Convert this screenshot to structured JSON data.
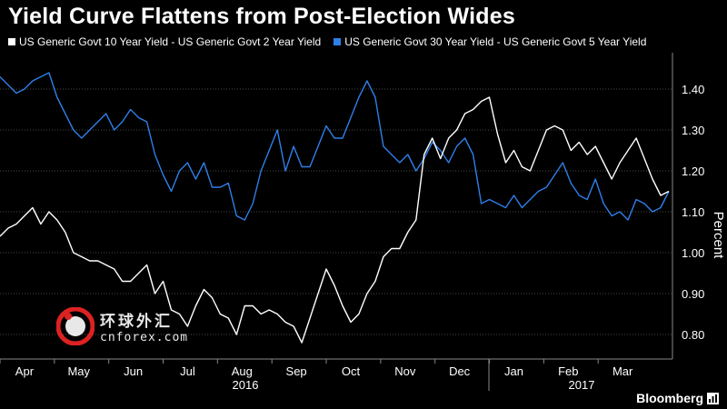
{
  "title": "Yield Curve Flattens from Post-Election Wides",
  "colors": {
    "background": "#000000",
    "series_a": "#ffffff",
    "series_b": "#2f7fe8",
    "grid": "#4a4a4a",
    "text": "#ffffff"
  },
  "watermark": {
    "cn": "环球外汇",
    "en": "cnforex.com",
    "icon": "cnforex-logo"
  },
  "brand": {
    "name": "Bloomberg",
    "icon": "bloomberg-chart-icon"
  },
  "chart_data": {
    "type": "line",
    "title": "Yield Curve Flattens from Post-Election Wides",
    "ylabel": "Percent",
    "xlabel": "",
    "ylim": [
      0.74,
      1.48
    ],
    "yticks": [
      "0.80",
      "0.90",
      "1.00",
      "1.10",
      "1.20",
      "1.30",
      "1.40"
    ],
    "xticks": [
      "Apr",
      "May",
      "Jun",
      "Jul",
      "Aug",
      "Sep",
      "Oct",
      "Nov",
      "Dec",
      "Jan",
      "Feb",
      "Mar"
    ],
    "year_labels": [
      "2016",
      "2017"
    ],
    "grid": true,
    "legend_position": "top",
    "x_index_range": [
      0,
      82
    ],
    "series": [
      {
        "name": "US Generic Govt 10 Year Yield - US Generic Govt 2 Year Yield",
        "color": "#ffffff",
        "values": [
          1.04,
          1.06,
          1.07,
          1.09,
          1.11,
          1.07,
          1.1,
          1.08,
          1.05,
          1.0,
          0.99,
          0.98,
          0.98,
          0.97,
          0.96,
          0.93,
          0.93,
          0.95,
          0.97,
          0.9,
          0.93,
          0.86,
          0.85,
          0.82,
          0.87,
          0.91,
          0.89,
          0.85,
          0.84,
          0.8,
          0.87,
          0.87,
          0.85,
          0.86,
          0.85,
          0.83,
          0.82,
          0.78,
          0.84,
          0.9,
          0.96,
          0.92,
          0.87,
          0.83,
          0.85,
          0.9,
          0.93,
          0.99,
          1.01,
          1.01,
          1.05,
          1.08,
          1.24,
          1.28,
          1.23,
          1.28,
          1.3,
          1.34,
          1.35,
          1.37,
          1.38,
          1.29,
          1.22,
          1.25,
          1.21,
          1.2,
          1.25,
          1.3,
          1.31,
          1.3,
          1.25,
          1.27,
          1.24,
          1.26,
          1.22,
          1.18,
          1.22,
          1.25,
          1.28,
          1.23,
          1.18,
          1.14,
          1.15
        ]
      },
      {
        "name": "US Generic Govt 30 Year Yield - US Generic Govt 5 Year Yield",
        "color": "#2f7fe8",
        "values": [
          1.43,
          1.41,
          1.39,
          1.4,
          1.42,
          1.43,
          1.44,
          1.38,
          1.34,
          1.3,
          1.28,
          1.3,
          1.32,
          1.34,
          1.3,
          1.32,
          1.35,
          1.33,
          1.32,
          1.24,
          1.19,
          1.15,
          1.2,
          1.22,
          1.18,
          1.22,
          1.16,
          1.16,
          1.17,
          1.09,
          1.08,
          1.12,
          1.2,
          1.25,
          1.3,
          1.2,
          1.26,
          1.21,
          1.21,
          1.26,
          1.31,
          1.28,
          1.28,
          1.33,
          1.38,
          1.42,
          1.38,
          1.26,
          1.24,
          1.22,
          1.24,
          1.2,
          1.23,
          1.27,
          1.25,
          1.22,
          1.26,
          1.28,
          1.24,
          1.12,
          1.13,
          1.12,
          1.11,
          1.14,
          1.11,
          1.13,
          1.15,
          1.16,
          1.19,
          1.22,
          1.17,
          1.14,
          1.13,
          1.18,
          1.12,
          1.09,
          1.1,
          1.08,
          1.13,
          1.12,
          1.1,
          1.11,
          1.15
        ]
      }
    ]
  }
}
